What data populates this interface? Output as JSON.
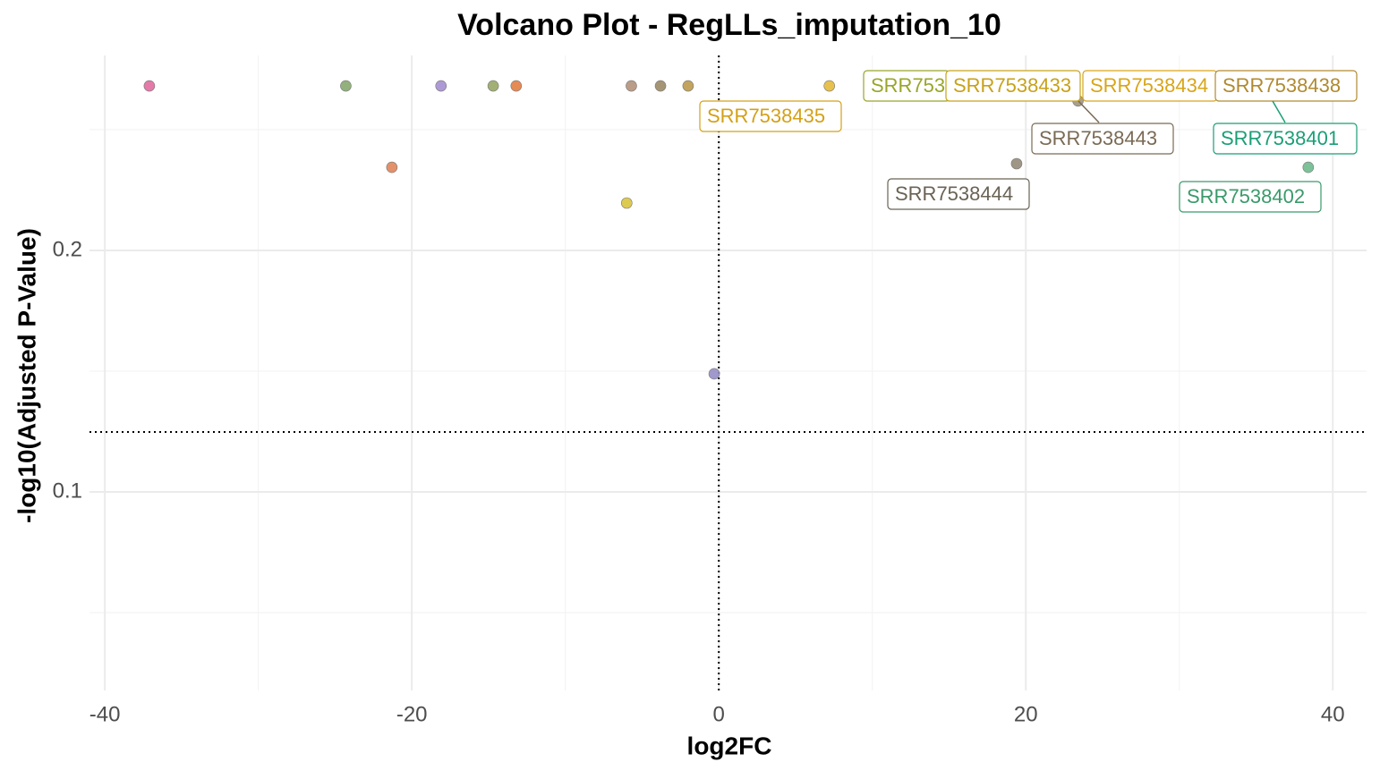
{
  "chart_data": {
    "type": "scatter",
    "title": "Volcano Plot - RegLLs_imputation_10",
    "xlabel": "log2FC",
    "ylabel": "-log10(Adjusted P-Value)",
    "xlim": [
      -41,
      42.2
    ],
    "ylim": [
      0.0178,
      0.2807
    ],
    "xticks": [
      -40,
      -20,
      0,
      20,
      40
    ],
    "yticks": [
      0.1,
      0.2
    ],
    "grid": true,
    "vline": 0,
    "hline": 0.1248,
    "x": [
      -37.1,
      -24.3,
      -21.3,
      -18.1,
      -14.7,
      -13.2,
      -6.0,
      -5.7,
      -3.8,
      -2.0,
      -0.3,
      7.2,
      19.4,
      23.4,
      38.4,
      12.1,
      19.1,
      27.8,
      36.9,
      35.9
    ],
    "y": [
      0.2681,
      0.2681,
      0.2344,
      0.2681,
      0.2681,
      0.2681,
      0.2196,
      0.2681,
      0.2681,
      0.2681,
      0.1489,
      0.2681,
      0.2359,
      0.2619,
      0.2344,
      0.2681,
      0.2681,
      0.2681,
      0.2681,
      0.2681
    ],
    "colors": [
      "#e06c9f",
      "#86a86f",
      "#e0855a",
      "#a48fd0",
      "#98a766",
      "#e37e42",
      "#d9c43d",
      "#b4917a",
      "#9c8a66",
      "#bd9a4e",
      "#968ec6",
      "#e4b93a",
      "#958b78",
      "#a0967f",
      "#6fba8e",
      "#9aa52a",
      "#c8a21a",
      "#d9a519",
      "#b08a30",
      "#1b9e77"
    ],
    "labels": [
      null,
      null,
      null,
      null,
      null,
      null,
      null,
      null,
      null,
      null,
      null,
      "SRR7538435",
      "SRR7538444",
      "SRR7538443",
      "SRR7538402",
      "SRR753",
      "SRR7538433",
      "SRR7538434",
      "SRR7538438",
      "SRR7538401"
    ],
    "label_colors": [
      null,
      null,
      null,
      null,
      null,
      null,
      null,
      null,
      null,
      null,
      null,
      "#d4a017",
      "#6a6355",
      "#7a6a55",
      "#3a9a6a",
      "#9aa52a",
      "#c8a21a",
      "#d9a519",
      "#b08a30",
      "#1b9e77"
    ]
  }
}
